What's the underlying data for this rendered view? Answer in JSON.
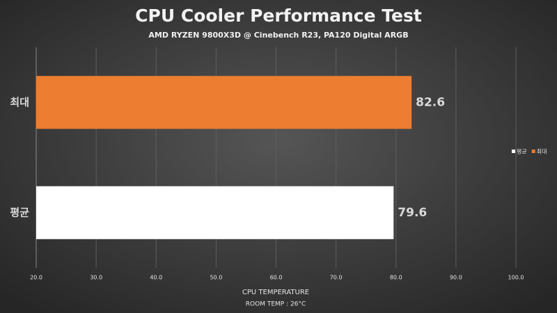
{
  "chart_data": {
    "type": "barh",
    "title": "CPU Cooler Performance Test",
    "subtitle": "AMD RYZEN 9800X3D @ Cinebench R23, PA120 Digital ARGB",
    "x_label": "CPU TEMPERATURE",
    "annotation": "ROOM TEMP : 26°C",
    "categories": [
      "최대",
      "평균"
    ],
    "values": [
      82.6,
      79.6
    ],
    "colors": [
      "#ed7d31",
      "#ffffff"
    ],
    "xlim": [
      20,
      100
    ],
    "xticks": [
      {
        "value": 20,
        "label": "20.0"
      },
      {
        "value": 30,
        "label": "30.0"
      },
      {
        "value": 40,
        "label": "40.0"
      },
      {
        "value": 50,
        "label": "50.0"
      },
      {
        "value": 60,
        "label": "60.0"
      },
      {
        "value": 70,
        "label": "70.0"
      },
      {
        "value": 80,
        "label": "80.0"
      },
      {
        "value": 90,
        "label": "90.0"
      },
      {
        "value": 100,
        "label": "100.0"
      }
    ],
    "grid": true,
    "legend": "right"
  }
}
